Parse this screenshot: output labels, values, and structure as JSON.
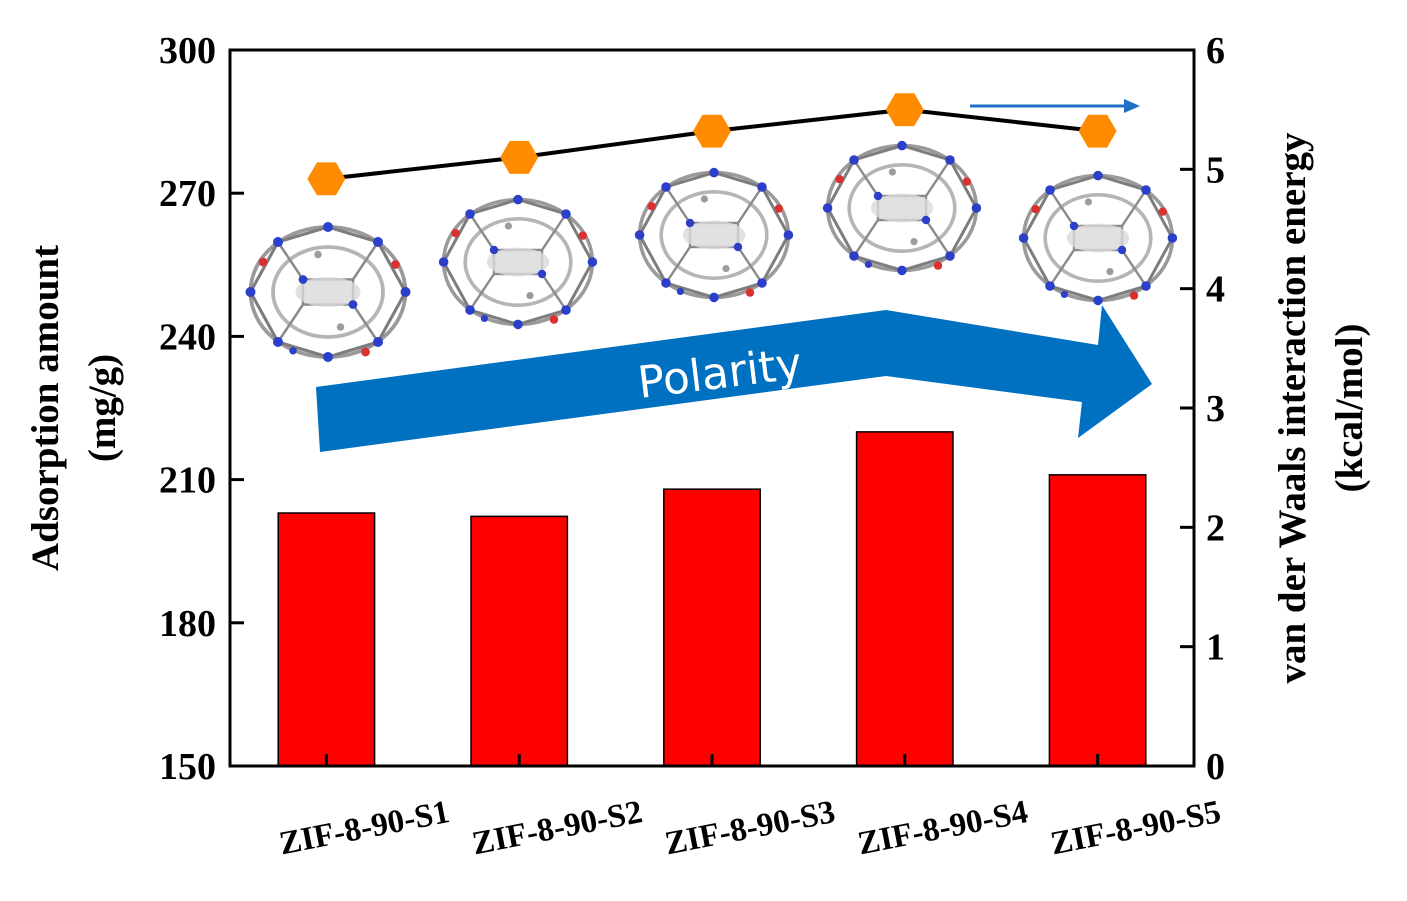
{
  "chart_data": {
    "type": "bar",
    "categories": [
      "ZIF-8-90-S1",
      "ZIF-8-90-S2",
      "ZIF-8-90-S3",
      "ZIF-8-90-S4",
      "ZIF-8-90-S5"
    ],
    "series": [
      {
        "values": [
          203,
          202.3,
          208,
          220,
          211
        ],
        "axis": "left",
        "render": "bar",
        "color": "#ff0000"
      },
      {
        "values": [
          4.92,
          5.1,
          5.32,
          5.5,
          5.32
        ],
        "axis": "right",
        "render": "line",
        "marker": "hexagon",
        "color": "#000000",
        "marker_color": "#ff8c00"
      }
    ],
    "ylabel_left_line1": "Adsorption amount",
    "ylabel_left_line2": "(mg/g)",
    "ylabel_right_line1": "van der Waals interaction energy",
    "ylabel_right_line2": "(kcal/mol)",
    "ylim_left": [
      150,
      300
    ],
    "yticks_left": [
      "150",
      "180",
      "210",
      "240",
      "270",
      "300"
    ],
    "ylim_right": [
      0,
      6
    ],
    "yticks_right": [
      "0",
      "1",
      "2",
      "3",
      "4",
      "5",
      "6"
    ],
    "annotation": "Polarity",
    "annotation_color": "#0070c0",
    "grid": false
  }
}
